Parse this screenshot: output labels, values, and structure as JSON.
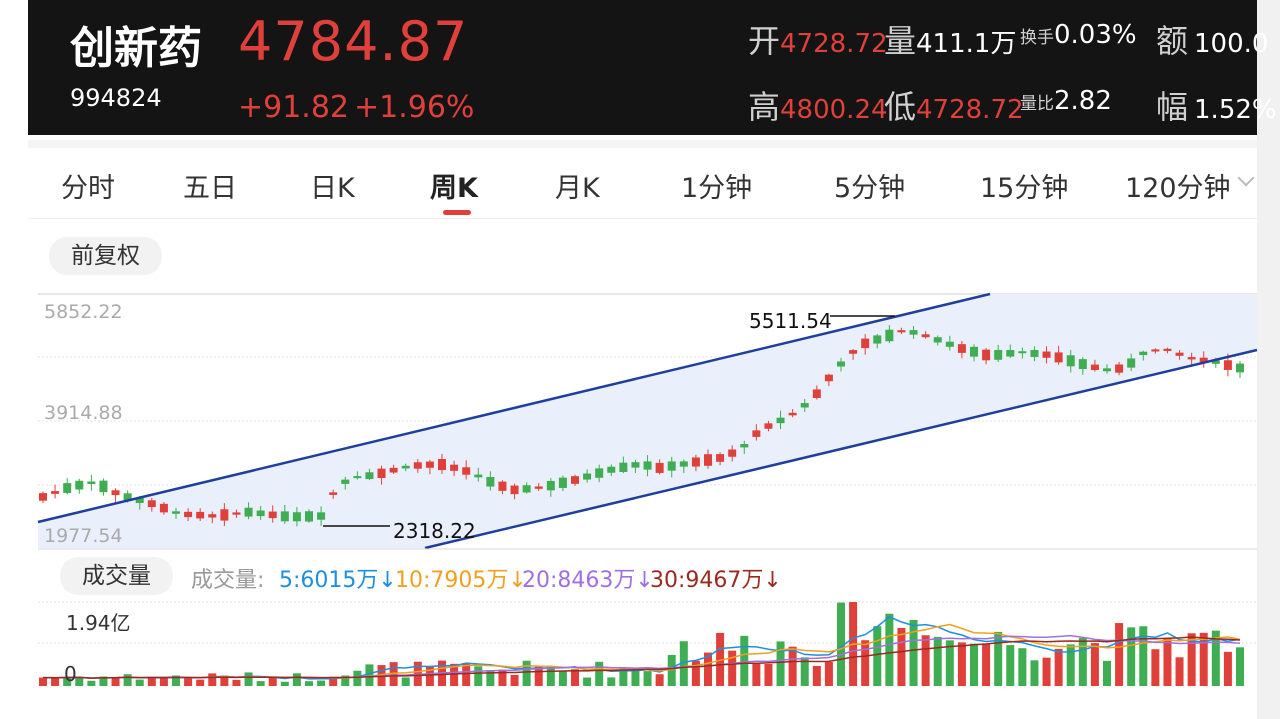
{
  "header": {
    "name": "创新药",
    "code": "994824",
    "price": "4784.87",
    "change": "+91.82",
    "change_pct": "+1.96%",
    "stats": [
      {
        "label": "开",
        "value": "4728.72"
      },
      {
        "label": "量",
        "value": "411.1万"
      },
      {
        "label": "换手",
        "value": "0.03%"
      },
      {
        "label": "额",
        "value": "100.0"
      },
      {
        "label": "高",
        "value": "4800.24"
      },
      {
        "label": "低",
        "value": "4728.72"
      },
      {
        "label": "量比",
        "value": "2.82"
      },
      {
        "label": "幅",
        "value": "1.52%"
      }
    ]
  },
  "tabs": [
    "分时",
    "五日",
    "日K",
    "周K",
    "月K",
    "1分钟",
    "5分钟",
    "15分钟",
    "120分钟"
  ],
  "active_tab": "周K",
  "adjust_label": "前复权",
  "volume_label": "成交量",
  "volume_legend": {
    "title": "成交量:",
    "items": [
      {
        "text": "5:6015万",
        "arrow": "↓",
        "color": "#1e8fe0"
      },
      {
        "text": "10:7905万",
        "arrow": "↓",
        "color": "#f0a020"
      },
      {
        "text": "20:8463万",
        "arrow": "↓",
        "color": "#a070e0"
      },
      {
        "text": "30:9467万",
        "arrow": "↓",
        "color": "#9a2a1f"
      }
    ]
  },
  "colors": {
    "up": "#e0403a",
    "down": "#3fad52",
    "channel": "#1f3f9e",
    "channel_fill": "#e9effb"
  },
  "chart_data": {
    "type": "candlestick",
    "y_labels": [
      "5852.22",
      "3914.88",
      "1977.54"
    ],
    "ylim": [
      1977.54,
      5852.22
    ],
    "annotations": [
      {
        "text": "5511.54",
        "value": 5511.54
      },
      {
        "text": "2318.22",
        "value": 2318.22
      }
    ],
    "volume_y_labels": [
      "1.94亿",
      "0"
    ],
    "volume_ylim": [
      0,
      194000000
    ]
  }
}
